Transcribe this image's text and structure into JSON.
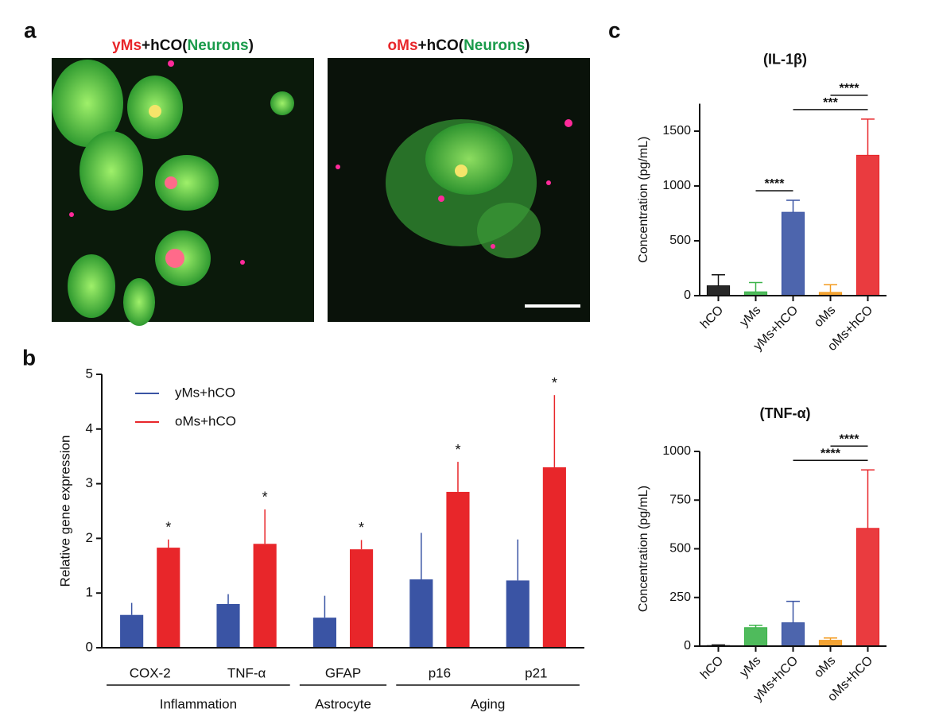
{
  "panel_labels": [
    "a",
    "b",
    "c"
  ],
  "images": [
    {
      "title_parts": [
        "yMs",
        "+hCO(",
        "Neurons",
        ")"
      ],
      "title_colors": [
        "#e8262a",
        "#111111",
        "#1a9b4b",
        "#111111"
      ]
    },
    {
      "title_parts": [
        "oMs",
        "+hCO(",
        "Neurons",
        ")"
      ],
      "title_colors": [
        "#e8262a",
        "#111111",
        "#1a9b4b",
        "#111111"
      ]
    }
  ],
  "chart_data": [
    {
      "type": "grouped-bar",
      "ylabel": "Relative gene expression",
      "categories": [
        "COX-2",
        "TNF-α",
        "GFAP",
        "p16",
        "p21"
      ],
      "groups": [
        {
          "label": "Inflammation",
          "span": [
            0,
            1
          ]
        },
        {
          "label": "Astrocyte",
          "span": [
            2,
            2
          ]
        },
        {
          "label": "Aging",
          "span": [
            3,
            4
          ]
        }
      ],
      "series": [
        {
          "name": "yMs+hCO",
          "color": "#3a54a4",
          "values": [
            0.6,
            0.8,
            0.55,
            1.25,
            1.23
          ],
          "errors": [
            0.22,
            0.18,
            0.4,
            0.85,
            0.75
          ]
        },
        {
          "name": "oMs+hCO",
          "color": "#e8262a",
          "values": [
            1.83,
            1.9,
            1.8,
            2.85,
            3.3
          ],
          "errors": [
            0.15,
            0.63,
            0.17,
            0.55,
            1.32
          ],
          "annotations": [
            "*",
            "*",
            "*",
            "*",
            "*"
          ]
        }
      ],
      "ylim": [
        0,
        5
      ],
      "yticks": [
        0,
        1,
        2,
        3,
        4,
        5
      ],
      "legend": "upper-left"
    },
    {
      "type": "bar",
      "title": "(IL-1β)",
      "ylabel": "Concentration (pg/mL)",
      "categories": [
        "hCO",
        "yMs",
        "yMs+hCO",
        "oMs",
        "oMs+hCO"
      ],
      "values": [
        90,
        35,
        760,
        30,
        1280
      ],
      "errors": [
        100,
        85,
        110,
        70,
        330
      ],
      "colors": [
        "#111111",
        "#3cb44a",
        "#3a54a4",
        "#f39a1e",
        "#e8262a"
      ],
      "ylim": [
        0,
        1750
      ],
      "yticks": [
        0,
        500,
        1000,
        1500
      ],
      "comparisons": [
        {
          "pair": [
            1,
            2
          ],
          "label": "****"
        },
        {
          "pair": [
            2,
            4
          ],
          "label": "***"
        },
        {
          "pair": [
            3,
            4
          ],
          "label": "****"
        }
      ]
    },
    {
      "type": "bar",
      "title": "(TNF-α)",
      "ylabel": "Concentration (pg/mL)",
      "categories": [
        "hCO",
        "yMs",
        "yMs+hCO",
        "oMs",
        "oMs+hCO"
      ],
      "values": [
        3,
        95,
        120,
        30,
        605
      ],
      "errors": [
        3,
        12,
        110,
        12,
        300
      ],
      "colors": [
        "#111111",
        "#3cb44a",
        "#3a54a4",
        "#f39a1e",
        "#e8262a"
      ],
      "ylim": [
        0,
        1000
      ],
      "yticks": [
        0,
        250,
        500,
        750,
        1000
      ],
      "comparisons": [
        {
          "pair": [
            2,
            4
          ],
          "label": "****"
        },
        {
          "pair": [
            3,
            4
          ],
          "label": "****"
        }
      ]
    }
  ]
}
